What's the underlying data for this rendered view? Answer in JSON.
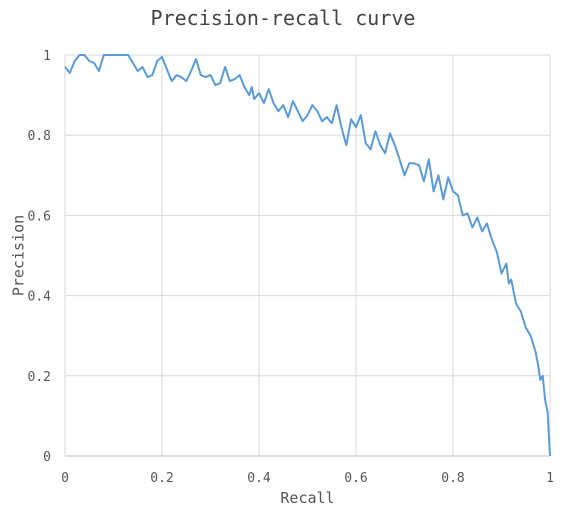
{
  "chart_data": {
    "type": "line",
    "title": "Precision-recall curve",
    "xlabel": "Recall",
    "ylabel": "Precision",
    "xlim": [
      0,
      1
    ],
    "ylim": [
      0,
      1
    ],
    "xticks": [
      0,
      0.2,
      0.4,
      0.6,
      0.8,
      1
    ],
    "xtick_labels": [
      "0",
      "0.2",
      "0.4",
      "0.6",
      "0.8",
      "1"
    ],
    "yticks": [
      0,
      0.2,
      0.4,
      0.6,
      0.8,
      1
    ],
    "ytick_labels": [
      "0",
      "0.2",
      "0.4",
      "0.6",
      "0.8",
      "1"
    ],
    "grid": true,
    "line_color": "#5b9bd5",
    "series": [
      {
        "points": [
          [
            0.0,
            0.97
          ],
          [
            0.01,
            0.955
          ],
          [
            0.02,
            0.985
          ],
          [
            0.03,
            1.0
          ],
          [
            0.04,
            1.0
          ],
          [
            0.05,
            0.985
          ],
          [
            0.06,
            0.98
          ],
          [
            0.07,
            0.96
          ],
          [
            0.08,
            1.0
          ],
          [
            0.1,
            1.0
          ],
          [
            0.12,
            1.0
          ],
          [
            0.13,
            1.0
          ],
          [
            0.14,
            0.98
          ],
          [
            0.15,
            0.96
          ],
          [
            0.16,
            0.97
          ],
          [
            0.17,
            0.945
          ],
          [
            0.18,
            0.95
          ],
          [
            0.19,
            0.985
          ],
          [
            0.2,
            0.995
          ],
          [
            0.21,
            0.965
          ],
          [
            0.22,
            0.935
          ],
          [
            0.23,
            0.95
          ],
          [
            0.24,
            0.945
          ],
          [
            0.25,
            0.935
          ],
          [
            0.26,
            0.96
          ],
          [
            0.27,
            0.99
          ],
          [
            0.28,
            0.95
          ],
          [
            0.29,
            0.945
          ],
          [
            0.3,
            0.95
          ],
          [
            0.31,
            0.925
          ],
          [
            0.32,
            0.93
          ],
          [
            0.33,
            0.97
          ],
          [
            0.34,
            0.935
          ],
          [
            0.35,
            0.94
          ],
          [
            0.36,
            0.95
          ],
          [
            0.37,
            0.92
          ],
          [
            0.38,
            0.9
          ],
          [
            0.385,
            0.92
          ],
          [
            0.39,
            0.89
          ],
          [
            0.4,
            0.905
          ],
          [
            0.41,
            0.88
          ],
          [
            0.42,
            0.915
          ],
          [
            0.43,
            0.88
          ],
          [
            0.44,
            0.86
          ],
          [
            0.45,
            0.875
          ],
          [
            0.46,
            0.845
          ],
          [
            0.47,
            0.885
          ],
          [
            0.48,
            0.86
          ],
          [
            0.49,
            0.835
          ],
          [
            0.5,
            0.85
          ],
          [
            0.51,
            0.875
          ],
          [
            0.52,
            0.86
          ],
          [
            0.53,
            0.835
          ],
          [
            0.54,
            0.845
          ],
          [
            0.55,
            0.83
          ],
          [
            0.56,
            0.875
          ],
          [
            0.57,
            0.82
          ],
          [
            0.58,
            0.775
          ],
          [
            0.59,
            0.84
          ],
          [
            0.6,
            0.82
          ],
          [
            0.61,
            0.85
          ],
          [
            0.62,
            0.78
          ],
          [
            0.63,
            0.765
          ],
          [
            0.64,
            0.81
          ],
          [
            0.65,
            0.775
          ],
          [
            0.66,
            0.755
          ],
          [
            0.67,
            0.805
          ],
          [
            0.68,
            0.775
          ],
          [
            0.69,
            0.74
          ],
          [
            0.7,
            0.7
          ],
          [
            0.71,
            0.73
          ],
          [
            0.72,
            0.73
          ],
          [
            0.73,
            0.725
          ],
          [
            0.74,
            0.685
          ],
          [
            0.75,
            0.74
          ],
          [
            0.76,
            0.66
          ],
          [
            0.77,
            0.7
          ],
          [
            0.78,
            0.64
          ],
          [
            0.79,
            0.695
          ],
          [
            0.8,
            0.66
          ],
          [
            0.81,
            0.65
          ],
          [
            0.82,
            0.6
          ],
          [
            0.83,
            0.605
          ],
          [
            0.84,
            0.57
          ],
          [
            0.85,
            0.595
          ],
          [
            0.86,
            0.56
          ],
          [
            0.87,
            0.58
          ],
          [
            0.88,
            0.54
          ],
          [
            0.89,
            0.51
          ],
          [
            0.9,
            0.455
          ],
          [
            0.91,
            0.48
          ],
          [
            0.915,
            0.43
          ],
          [
            0.92,
            0.44
          ],
          [
            0.93,
            0.38
          ],
          [
            0.94,
            0.36
          ],
          [
            0.95,
            0.32
          ],
          [
            0.96,
            0.3
          ],
          [
            0.97,
            0.26
          ],
          [
            0.975,
            0.23
          ],
          [
            0.98,
            0.19
          ],
          [
            0.985,
            0.2
          ],
          [
            0.99,
            0.14
          ],
          [
            0.995,
            0.11
          ],
          [
            1.0,
            0.0
          ]
        ]
      }
    ]
  }
}
